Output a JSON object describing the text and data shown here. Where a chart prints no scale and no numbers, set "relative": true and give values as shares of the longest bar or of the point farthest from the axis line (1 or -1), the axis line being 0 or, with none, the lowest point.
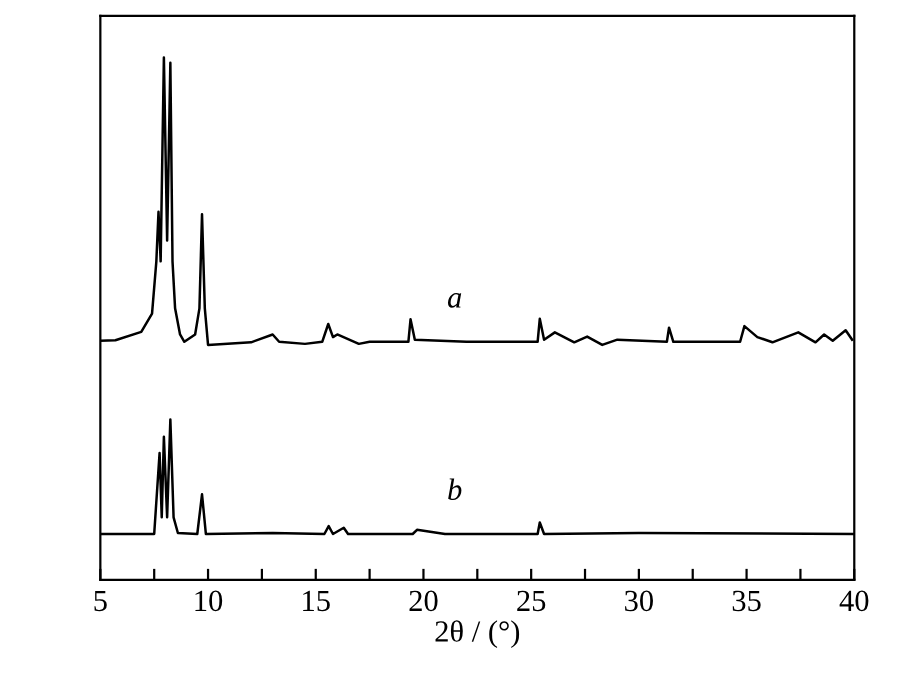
{
  "chart_data": {
    "type": "line",
    "relative": true,
    "xlabel": "2θ / (°)",
    "xlim": [
      5,
      40
    ],
    "xticks": [
      5,
      {
        "value": 7.5,
        "label": null
      },
      10,
      {
        "value": 12.5,
        "label": null
      },
      15,
      {
        "value": 17.5,
        "label": null
      },
      20,
      {
        "value": 22.5,
        "label": null
      },
      25,
      {
        "value": 27.5,
        "label": null
      },
      30,
      {
        "value": 32.5,
        "label": null
      },
      35,
      {
        "value": 37.5,
        "label": null
      },
      40
    ],
    "grid": false,
    "legend": false,
    "marker": "none",
    "line_style": "solid",
    "series": [
      {
        "name": "a",
        "color": "#000000",
        "x": [
          5,
          5.7,
          6.9,
          7.4,
          7.6,
          7.7,
          7.8,
          7.95,
          8.1,
          8.25,
          8.35,
          8.47,
          8.7,
          8.9,
          9.4,
          9.6,
          9.72,
          9.85,
          10,
          12,
          13,
          13.3,
          14.5,
          15.3,
          15.58,
          15.8,
          16,
          17,
          17.5,
          19.3,
          19.4,
          19.6,
          22,
          25.3,
          25.4,
          25.6,
          26.1,
          27,
          27.6,
          28.3,
          29,
          31.3,
          31.4,
          31.6,
          34.7,
          34.9,
          35.5,
          36.2,
          37.4,
          38.2,
          38.6,
          39,
          39.6,
          39.9
        ],
        "values": [
          0.458,
          0.459,
          0.475,
          0.51,
          0.61,
          0.705,
          0.61,
          1.0,
          0.65,
          0.99,
          0.61,
          0.52,
          0.47,
          0.456,
          0.47,
          0.52,
          0.7,
          0.52,
          0.45,
          0.455,
          0.47,
          0.456,
          0.452,
          0.456,
          0.49,
          0.465,
          0.47,
          0.452,
          0.456,
          0.456,
          0.499,
          0.46,
          0.456,
          0.456,
          0.5,
          0.46,
          0.474,
          0.455,
          0.466,
          0.45,
          0.46,
          0.456,
          0.483,
          0.456,
          0.456,
          0.486,
          0.465,
          0.455,
          0.474,
          0.455,
          0.47,
          0.458,
          0.478,
          0.46
        ]
      },
      {
        "name": "b",
        "color": "#000000",
        "x": [
          5,
          7.5,
          7.75,
          7.85,
          7.95,
          8.1,
          8.25,
          8.4,
          8.6,
          9.5,
          9.72,
          9.9,
          13,
          15.4,
          15.6,
          15.8,
          16.3,
          16.5,
          19.5,
          19.7,
          21,
          25.3,
          25.4,
          25.6,
          30,
          40
        ],
        "values": [
          0.088,
          0.088,
          0.243,
          0.12,
          0.274,
          0.12,
          0.307,
          0.12,
          0.09,
          0.088,
          0.164,
          0.088,
          0.09,
          0.088,
          0.103,
          0.088,
          0.1,
          0.088,
          0.088,
          0.096,
          0.088,
          0.088,
          0.11,
          0.088,
          0.09,
          0.088
        ]
      }
    ]
  }
}
